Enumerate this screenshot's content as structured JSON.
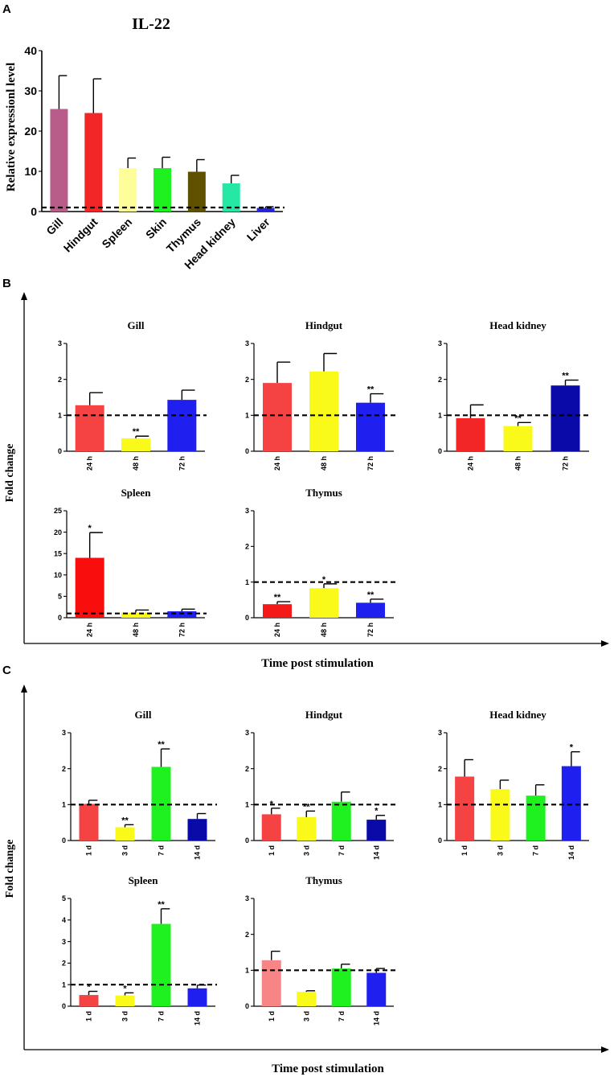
{
  "panel_labels": {
    "a": "A",
    "b": "B",
    "c": "C"
  },
  "chart_data": [
    {
      "id": "A",
      "type": "bar",
      "title": "IL-22",
      "ylabel": "Relative expressionl level",
      "xlabel": "",
      "ylim": [
        0,
        40
      ],
      "yticks": [
        0,
        10,
        20,
        30,
        40
      ],
      "categories": [
        "Gill",
        "Hindgut",
        "Spleen",
        "Skin",
        "Thymus",
        "Head kidney",
        "Liver"
      ],
      "values": [
        25.5,
        24.5,
        10.8,
        10.8,
        9.9,
        7.0,
        0.9
      ],
      "errors": [
        8.3,
        8.5,
        2.5,
        2.7,
        3.0,
        2.0,
        0.3
      ],
      "colors": [
        "#b85c8a",
        "#f22626",
        "#fdfd99",
        "#1ff01f",
        "#5f5100",
        "#25e8a5",
        "#2525d8"
      ],
      "reference_line": 1
    }
  ],
  "panel_b": {
    "ylabel": "Fold change",
    "xlabel": "Time post stimulation",
    "charts": [
      {
        "title": "Gill",
        "type": "bar",
        "ylim": [
          0,
          3
        ],
        "yticks": [
          0,
          1,
          2,
          3
        ],
        "categories": [
          "24 h",
          "48 h",
          "72 h"
        ],
        "values": [
          1.28,
          0.36,
          1.43
        ],
        "errors": [
          0.35,
          0.06,
          0.27
        ],
        "significance": [
          "",
          "**",
          ""
        ],
        "colors": [
          "#f54343",
          "#fafa1a",
          "#1f1ff0"
        ],
        "reference_line": 1
      },
      {
        "title": "Hindgut",
        "type": "bar",
        "ylim": [
          0,
          3
        ],
        "yticks": [
          0,
          1,
          2,
          3
        ],
        "categories": [
          "24 h",
          "48 h",
          "72 h"
        ],
        "values": [
          1.9,
          2.22,
          1.35
        ],
        "errors": [
          0.58,
          0.5,
          0.25
        ],
        "significance": [
          "",
          "",
          "**"
        ],
        "colors": [
          "#f54343",
          "#fafa1a",
          "#1f1ff0"
        ],
        "reference_line": 1
      },
      {
        "title": "Head kidney",
        "type": "bar",
        "ylim": [
          0,
          3
        ],
        "yticks": [
          0,
          1,
          2,
          3
        ],
        "categories": [
          "24 h",
          "48 h",
          "72 h"
        ],
        "values": [
          0.92,
          0.7,
          1.83
        ],
        "errors": [
          0.37,
          0.1,
          0.15
        ],
        "significance": [
          "",
          "**",
          "**"
        ],
        "colors": [
          "#f22626",
          "#fafa1a",
          "#0a0aa8"
        ],
        "reference_line": 1
      },
      {
        "title": "Spleen",
        "type": "bar",
        "ylim": [
          0,
          25
        ],
        "yticks": [
          0,
          5,
          10,
          15,
          20,
          25
        ],
        "categories": [
          "24 h",
          "48 h",
          "72 h"
        ],
        "values": [
          14.0,
          1.2,
          1.5
        ],
        "errors": [
          5.9,
          0.6,
          0.5
        ],
        "significance": [
          "*",
          "",
          ""
        ],
        "colors": [
          "#fa0d0d",
          "#fafa1a",
          "#1f1ff0"
        ],
        "reference_line": 1
      },
      {
        "title": "Thymus",
        "type": "bar",
        "ylim": [
          0,
          3
        ],
        "yticks": [
          0,
          1,
          2,
          3
        ],
        "categories": [
          "24 h",
          "48 h",
          "72 h"
        ],
        "values": [
          0.38,
          0.83,
          0.42
        ],
        "errors": [
          0.07,
          0.12,
          0.1
        ],
        "significance": [
          "**",
          "*",
          "**"
        ],
        "colors": [
          "#f51a1a",
          "#fafa1a",
          "#1f1ff0"
        ],
        "reference_line": 1
      }
    ]
  },
  "panel_c": {
    "ylabel": "Fold change",
    "xlabel": "Time post stimulation",
    "charts": [
      {
        "title": "Gill",
        "type": "bar",
        "ylim": [
          0,
          3
        ],
        "yticks": [
          0,
          1,
          2,
          3
        ],
        "categories": [
          "1 d",
          "3 d",
          "7 d",
          "14 d"
        ],
        "values": [
          1.02,
          0.37,
          2.05,
          0.6
        ],
        "errors": [
          0.1,
          0.07,
          0.5,
          0.15
        ],
        "significance": [
          "",
          "**",
          "**",
          ""
        ],
        "colors": [
          "#f54343",
          "#fafa1a",
          "#1ff01f",
          "#0a0aa8"
        ],
        "reference_line": 1
      },
      {
        "title": "Hindgut",
        "type": "bar",
        "ylim": [
          0,
          3
        ],
        "yticks": [
          0,
          1,
          2,
          3
        ],
        "categories": [
          "1 d",
          "3 d",
          "7 d",
          "14 d"
        ],
        "values": [
          0.73,
          0.65,
          1.08,
          0.58
        ],
        "errors": [
          0.17,
          0.17,
          0.27,
          0.12
        ],
        "significance": [
          "*",
          "**",
          "",
          "*"
        ],
        "colors": [
          "#f54343",
          "#fafa1a",
          "#1ff01f",
          "#0a0aa8"
        ],
        "reference_line": 1
      },
      {
        "title": "Head kidney",
        "type": "bar",
        "ylim": [
          0,
          3
        ],
        "yticks": [
          0,
          1,
          2,
          3
        ],
        "categories": [
          "1 d",
          "3 d",
          "7 d",
          "14 d"
        ],
        "values": [
          1.78,
          1.43,
          1.25,
          2.07
        ],
        "errors": [
          0.47,
          0.25,
          0.3,
          0.4
        ],
        "significance": [
          "",
          "",
          "",
          "*"
        ],
        "colors": [
          "#f54343",
          "#fafa1a",
          "#1ff01f",
          "#1f1ff0"
        ],
        "reference_line": 1
      },
      {
        "title": "Spleen",
        "type": "bar",
        "ylim": [
          0,
          5
        ],
        "yticks": [
          0,
          1,
          2,
          3,
          4,
          5
        ],
        "categories": [
          "1 d",
          "3 d",
          "7 d",
          "14 d"
        ],
        "values": [
          0.52,
          0.5,
          3.82,
          0.83
        ],
        "errors": [
          0.17,
          0.12,
          0.7,
          0.15
        ],
        "significance": [
          "*",
          "*",
          "**",
          ""
        ],
        "colors": [
          "#f54343",
          "#fafa1a",
          "#1ff01f",
          "#1f1ff0"
        ],
        "reference_line": 1
      },
      {
        "title": "Thymus",
        "type": "bar",
        "ylim": [
          0,
          3
        ],
        "yticks": [
          0,
          1,
          2,
          3
        ],
        "categories": [
          "1 d",
          "3 d",
          "7 d",
          "14 d"
        ],
        "values": [
          1.28,
          0.4,
          1.05,
          0.93
        ],
        "errors": [
          0.25,
          0.03,
          0.12,
          0.12
        ],
        "significance": [
          "",
          "",
          "",
          ""
        ],
        "colors": [
          "#f78585",
          "#fafa1a",
          "#1ff01f",
          "#1f1ff0"
        ],
        "reference_line": 1
      }
    ]
  }
}
